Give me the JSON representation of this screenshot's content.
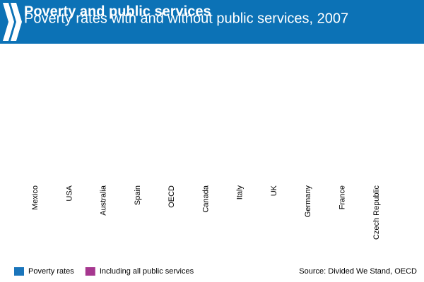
{
  "chart_data": {
    "type": "bar",
    "title": "Poverty and public services",
    "subtitle": "Poverty rates with and without public services, 2007",
    "categories": [
      "Mexico",
      "USA",
      "Australia",
      "Spain",
      "OECD",
      "Canada",
      "Italy",
      "UK",
      "Germany",
      "France",
      "Czech Republic"
    ],
    "series": [
      {
        "name": "Poverty rates",
        "color": "#1a75bb",
        "values": [
          null,
          null,
          null,
          null,
          null,
          null,
          null,
          null,
          null,
          null,
          null
        ]
      },
      {
        "name": "Including all public services",
        "color": "#a6378f",
        "values": [
          null,
          null,
          null,
          null,
          null,
          null,
          null,
          null,
          null,
          null,
          null
        ]
      }
    ],
    "source": "Source: Divided We Stand, OECD"
  }
}
